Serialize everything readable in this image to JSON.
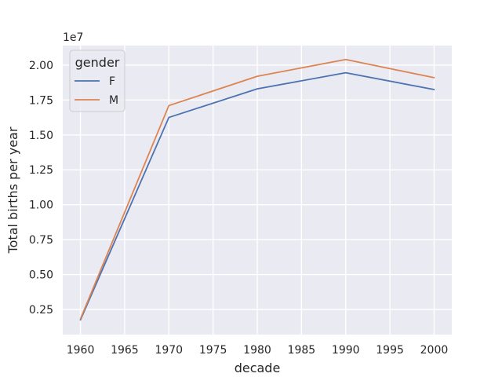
{
  "chart_data": {
    "type": "line",
    "title": "",
    "xlabel": "decade",
    "ylabel": "Total births per year",
    "y_offset_label": "1e7",
    "x": [
      1960,
      1970,
      1980,
      1990,
      2000
    ],
    "series": [
      {
        "name": "F",
        "values": [
          1750000,
          16250000,
          18300000,
          19450000,
          18250000
        ],
        "color": "#4c72b0"
      },
      {
        "name": "M",
        "values": [
          1820000,
          17100000,
          19200000,
          20400000,
          19100000
        ],
        "color": "#dd8452"
      }
    ],
    "xlim": [
      1958,
      2002
    ],
    "ylim": [
      700000,
      21400000
    ],
    "x_ticks": [
      1960,
      1965,
      1970,
      1975,
      1980,
      1985,
      1990,
      1995,
      2000
    ],
    "x_tick_labels": [
      "1960",
      "1965",
      "1970",
      "1975",
      "1980",
      "1985",
      "1990",
      "1995",
      "2000"
    ],
    "y_ticks": [
      0.25,
      0.5,
      0.75,
      1.0,
      1.25,
      1.5,
      1.75,
      2.0
    ],
    "y_tick_labels": [
      "0.25",
      "0.50",
      "0.75",
      "1.00",
      "1.25",
      "1.50",
      "1.75",
      "2.00"
    ],
    "y_tick_scale": 10000000,
    "grid": true,
    "background": "#eaeaf2",
    "legend": {
      "title": "gender",
      "placement": "upper-left"
    }
  }
}
